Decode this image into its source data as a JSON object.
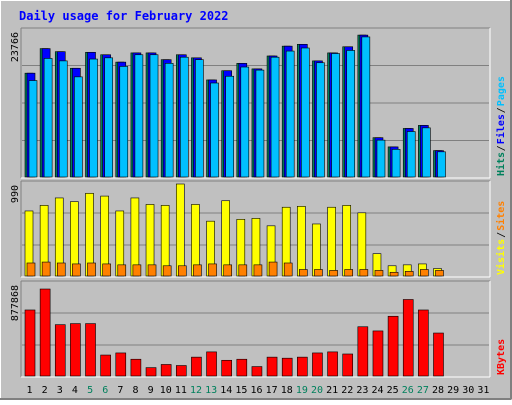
{
  "title": "Daily usage for February 2022",
  "colors": {
    "background": "#c0c0c0",
    "title": "#0000ff",
    "hits": "#00805c",
    "files": "#0000ff",
    "pages": "#00c0ff",
    "visits": "#ffff00",
    "sites": "#ff8000",
    "kbytes": "#ff0000",
    "weekend_label": "#00805c",
    "weekday_label": "#000000"
  },
  "chart_data": [
    {
      "type": "bar",
      "panel": "hits-files-pages",
      "max_label": "23766",
      "ylim": [
        0,
        23766
      ],
      "legend": [
        {
          "name": "Hits",
          "color": "#00805c"
        },
        {
          "name": "Files",
          "color": "#0000ff"
        },
        {
          "name": "Pages",
          "color": "#00c0ff"
        }
      ],
      "categories": [
        "1",
        "2",
        "3",
        "4",
        "5",
        "6",
        "7",
        "8",
        "9",
        "10",
        "11",
        "12",
        "13",
        "14",
        "15",
        "16",
        "17",
        "18",
        "19",
        "20",
        "21",
        "22",
        "23",
        "24",
        "25",
        "26",
        "27",
        "28",
        "29",
        "30",
        "31"
      ],
      "series": [
        {
          "name": "Hits",
          "values": [
            16900,
            20900,
            20400,
            17700,
            20300,
            19900,
            18700,
            20200,
            20200,
            19100,
            19900,
            19400,
            15800,
            17300,
            18500,
            17600,
            19700,
            21300,
            21600,
            18900,
            20200,
            21200,
            23100,
            6400,
            4900,
            7900,
            8400,
            4300,
            null,
            null,
            null
          ]
        },
        {
          "name": "Files",
          "values": [
            16900,
            20900,
            20400,
            17700,
            20300,
            19900,
            18700,
            20200,
            20200,
            19100,
            19900,
            19400,
            15800,
            17300,
            18500,
            17600,
            19700,
            21300,
            21600,
            18900,
            20200,
            21200,
            23100,
            6400,
            4900,
            7900,
            8400,
            4300,
            null,
            null,
            null
          ]
        },
        {
          "name": "Pages",
          "values": [
            15700,
            19300,
            18900,
            16300,
            19200,
            19400,
            18000,
            19900,
            19900,
            18500,
            19500,
            19100,
            15300,
            16400,
            17900,
            17400,
            19500,
            20500,
            21000,
            18600,
            20100,
            20600,
            22800,
            6000,
            4500,
            7400,
            8000,
            4100,
            null,
            null,
            null
          ]
        }
      ]
    },
    {
      "type": "bar",
      "panel": "visits-sites",
      "max_label": "990",
      "ylim": [
        0,
        990
      ],
      "legend": [
        {
          "name": "Visits",
          "color": "#ffff00"
        },
        {
          "name": "Sites",
          "color": "#ff8000"
        }
      ],
      "categories": [
        "1",
        "2",
        "3",
        "4",
        "5",
        "6",
        "7",
        "8",
        "9",
        "10",
        "11",
        "12",
        "13",
        "14",
        "15",
        "16",
        "17",
        "18",
        "19",
        "20",
        "21",
        "22",
        "23",
        "24",
        "25",
        "26",
        "27",
        "28",
        "29",
        "30",
        "31"
      ],
      "series": [
        {
          "name": "Visits",
          "values": [
            700,
            760,
            840,
            800,
            890,
            860,
            700,
            840,
            770,
            760,
            990,
            770,
            590,
            810,
            610,
            620,
            540,
            740,
            750,
            560,
            740,
            760,
            680,
            240,
            110,
            120,
            130,
            80,
            null,
            null,
            null
          ]
        },
        {
          "name": "Sites",
          "values": [
            140,
            150,
            140,
            130,
            140,
            130,
            120,
            120,
            120,
            110,
            110,
            120,
            130,
            120,
            120,
            120,
            150,
            140,
            70,
            70,
            60,
            70,
            70,
            60,
            40,
            50,
            70,
            60,
            null,
            null,
            null
          ]
        }
      ]
    },
    {
      "type": "bar",
      "panel": "kbytes",
      "max_label": "877868",
      "ylim": [
        0,
        877868
      ],
      "legend": [
        {
          "name": "KBytes",
          "color": "#ff0000"
        }
      ],
      "categories": [
        "1",
        "2",
        "3",
        "4",
        "5",
        "6",
        "7",
        "8",
        "9",
        "10",
        "11",
        "12",
        "13",
        "14",
        "15",
        "16",
        "17",
        "18",
        "19",
        "20",
        "21",
        "22",
        "23",
        "24",
        "25",
        "26",
        "27",
        "28",
        "29",
        "30",
        "31"
      ],
      "series": [
        {
          "name": "KBytes",
          "values": [
            630000,
            830000,
            490000,
            500000,
            500000,
            200000,
            220000,
            160000,
            80000,
            110000,
            100000,
            180000,
            230000,
            150000,
            160000,
            90000,
            180000,
            170000,
            180000,
            220000,
            230000,
            210000,
            470000,
            430000,
            570000,
            730000,
            630000,
            410000,
            null,
            null,
            null
          ]
        }
      ]
    }
  ],
  "x_labels": [
    {
      "text": "1",
      "weekend": false
    },
    {
      "text": "2",
      "weekend": false
    },
    {
      "text": "3",
      "weekend": false
    },
    {
      "text": "4",
      "weekend": false
    },
    {
      "text": "5",
      "weekend": true
    },
    {
      "text": "6",
      "weekend": true
    },
    {
      "text": "7",
      "weekend": false
    },
    {
      "text": "8",
      "weekend": false
    },
    {
      "text": "9",
      "weekend": false
    },
    {
      "text": "10",
      "weekend": false
    },
    {
      "text": "11",
      "weekend": false
    },
    {
      "text": "12",
      "weekend": true
    },
    {
      "text": "13",
      "weekend": true
    },
    {
      "text": "14",
      "weekend": false
    },
    {
      "text": "15",
      "weekend": false
    },
    {
      "text": "16",
      "weekend": false
    },
    {
      "text": "17",
      "weekend": false
    },
    {
      "text": "18",
      "weekend": false
    },
    {
      "text": "19",
      "weekend": true
    },
    {
      "text": "20",
      "weekend": true
    },
    {
      "text": "21",
      "weekend": false
    },
    {
      "text": "22",
      "weekend": false
    },
    {
      "text": "23",
      "weekend": false
    },
    {
      "text": "24",
      "weekend": false
    },
    {
      "text": "25",
      "weekend": false
    },
    {
      "text": "26",
      "weekend": true
    },
    {
      "text": "27",
      "weekend": true
    },
    {
      "text": "28",
      "weekend": false
    },
    {
      "text": "29",
      "weekend": false
    },
    {
      "text": "30",
      "weekend": false
    },
    {
      "text": "31",
      "weekend": false
    }
  ]
}
